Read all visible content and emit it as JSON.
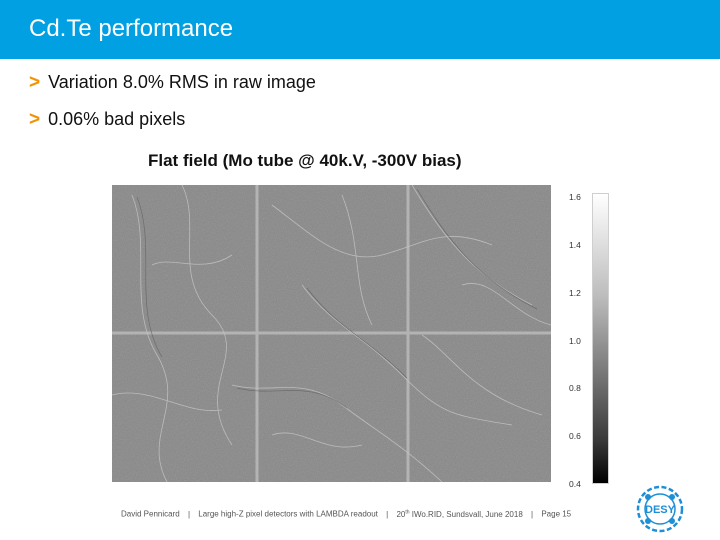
{
  "slide": {
    "title": "Cd.Te performance",
    "bullets": [
      "Variation 8.0% RMS in raw image",
      "0.06% bad pixels"
    ],
    "bullet_marker": ">",
    "figure_caption": "Flat field (Mo tube @ 40k.V, -300V bias)",
    "colorbar_ticks": [
      "1.6",
      "1.4",
      "1.2",
      "1.0",
      "0.8",
      "0.6",
      "0.4"
    ],
    "logo_text": "DESY"
  },
  "footer": {
    "author": "David Pennicard",
    "talk_title": "Large high-Z pixel detectors with LAMBDA readout",
    "event_prefix": "20",
    "event_sup": "th",
    "event_suffix": " IWo.RID, Sundsvall, June 2018",
    "page": "Page 15",
    "separator": "|"
  },
  "colors": {
    "title_bar": "#00a0e3",
    "bullet_arrow": "#f39200",
    "logo": "#1d8fd6"
  }
}
